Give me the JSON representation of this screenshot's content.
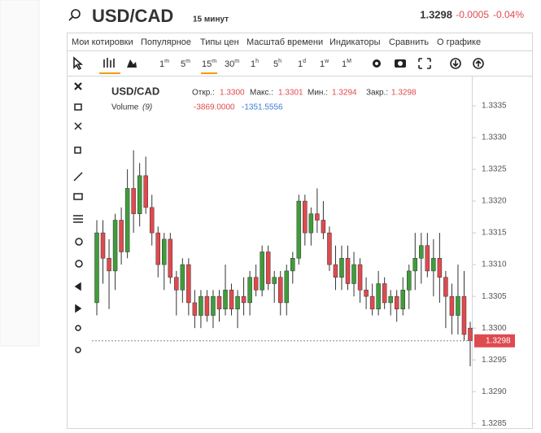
{
  "header": {
    "symbol": "USD/CAD",
    "interval": "15 минут",
    "price": "1.3298",
    "change": "-0.0005",
    "change_pct": "-0.04%"
  },
  "menu": [
    "Мои котировки",
    "Популярное",
    "Типы цен",
    "Масштаб времени",
    "Индикаторы",
    "Сравнить",
    "О графике"
  ],
  "timeframes": [
    {
      "num": "1",
      "unit": "m"
    },
    {
      "num": "5",
      "unit": "m"
    },
    {
      "num": "15",
      "unit": "m"
    },
    {
      "num": "30",
      "unit": "m"
    },
    {
      "num": "1",
      "unit": "h"
    },
    {
      "num": "5",
      "unit": "h"
    },
    {
      "num": "1",
      "unit": "d"
    },
    {
      "num": "1",
      "unit": "w"
    },
    {
      "num": "1",
      "unit": "M"
    }
  ],
  "legend": {
    "symbol": "USD/CAD",
    "open_label": "Откр.:",
    "open": "1.3300",
    "high_label": "Макс.:",
    "high": "1.3301",
    "low_label": "Мин.:",
    "low": "1.3294",
    "close_label": "Закр.:",
    "close": "1.3298",
    "volume_label": "Volume",
    "volume_period": "(9)",
    "volume_value1": "-3869.0000",
    "volume_value2": "-1351.5556"
  },
  "chart_data": {
    "type": "candlestick",
    "up_color": "#3f9d3a",
    "down_color": "#df4a4f",
    "series": [
      {
        "name": "USD/CAD",
        "open": [
          1.3304,
          1.3315,
          1.3311,
          1.3309,
          1.3317,
          1.3312,
          1.3322,
          1.3318,
          1.3324,
          1.3319,
          1.3315,
          1.331,
          1.3314,
          1.3308,
          1.3306,
          1.331,
          1.3304,
          1.3302,
          1.3305,
          1.3302,
          1.3305,
          1.3303,
          1.3306,
          1.3303,
          1.3305,
          1.3304,
          1.3308,
          1.3306,
          1.3312,
          1.3307,
          1.3308,
          1.3304,
          1.3309,
          1.3311,
          1.332,
          1.3315,
          1.3318,
          1.3317,
          1.3315,
          1.331,
          1.3308,
          1.3311,
          1.3307,
          1.331,
          1.3306,
          1.3305,
          1.3303,
          1.3307,
          1.3304,
          1.3305,
          1.3303,
          1.3306,
          1.3309,
          1.3311,
          1.3313,
          1.3309,
          1.3311,
          1.3308,
          1.3305,
          1.3302,
          1.3305,
          1.33
        ],
        "high": [
          1.3317,
          1.3317,
          1.3314,
          1.3318,
          1.3319,
          1.3325,
          1.3328,
          1.3326,
          1.3327,
          1.3321,
          1.3316,
          1.3315,
          1.3315,
          1.3309,
          1.3311,
          1.3311,
          1.3306,
          1.3306,
          1.3306,
          1.3306,
          1.3306,
          1.331,
          1.3307,
          1.3306,
          1.3308,
          1.3309,
          1.331,
          1.3313,
          1.3313,
          1.3309,
          1.3309,
          1.331,
          1.3312,
          1.3321,
          1.3321,
          1.3319,
          1.3322,
          1.332,
          1.3316,
          1.3313,
          1.3313,
          1.3313,
          1.3312,
          1.3311,
          1.3308,
          1.3307,
          1.3309,
          1.3308,
          1.3306,
          1.3306,
          1.3308,
          1.331,
          1.3315,
          1.3315,
          1.3315,
          1.3314,
          1.3315,
          1.3309,
          1.3307,
          1.331,
          1.3309,
          1.3301
        ],
        "low": [
          1.3302,
          1.3307,
          1.3303,
          1.3306,
          1.331,
          1.3311,
          1.3315,
          1.3316,
          1.3318,
          1.3313,
          1.3308,
          1.3306,
          1.3307,
          1.3302,
          1.3304,
          1.3302,
          1.33,
          1.33,
          1.3301,
          1.33,
          1.3301,
          1.3302,
          1.3302,
          1.33,
          1.3302,
          1.3302,
          1.3305,
          1.3305,
          1.3306,
          1.3304,
          1.3302,
          1.3302,
          1.3307,
          1.331,
          1.3313,
          1.3313,
          1.3315,
          1.3314,
          1.3309,
          1.3306,
          1.3306,
          1.3306,
          1.3305,
          1.3304,
          1.3303,
          1.3302,
          1.3302,
          1.3303,
          1.3302,
          1.3301,
          1.3302,
          1.3303,
          1.3306,
          1.3307,
          1.3308,
          1.3305,
          1.3304,
          1.33,
          1.3299,
          1.3299,
          1.3298,
          1.3294
        ],
        "close": [
          1.3315,
          1.3311,
          1.3309,
          1.3317,
          1.3312,
          1.3322,
          1.3318,
          1.3324,
          1.3319,
          1.3315,
          1.331,
          1.3314,
          1.3308,
          1.3306,
          1.331,
          1.3304,
          1.3302,
          1.3305,
          1.3302,
          1.3305,
          1.3303,
          1.3306,
          1.3303,
          1.3305,
          1.3304,
          1.3308,
          1.3306,
          1.3312,
          1.3307,
          1.3308,
          1.3304,
          1.3309,
          1.3311,
          1.332,
          1.3315,
          1.3318,
          1.3317,
          1.3315,
          1.331,
          1.3308,
          1.3311,
          1.3307,
          1.331,
          1.3306,
          1.3305,
          1.3303,
          1.3307,
          1.3304,
          1.3305,
          1.3303,
          1.3306,
          1.3309,
          1.3311,
          1.3313,
          1.3309,
          1.3311,
          1.3308,
          1.3305,
          1.3302,
          1.3305,
          1.3299,
          1.3298
        ]
      }
    ],
    "ylim": [
      1.3284,
      1.334
    ],
    "yticks": [
      {
        "value": 1.3285,
        "label": "1.3285"
      },
      {
        "value": 1.329,
        "label": "1.3290"
      },
      {
        "value": 1.3295,
        "label": "1.3295"
      },
      {
        "value": 1.33,
        "label": "1.3300"
      },
      {
        "value": 1.3305,
        "label": "1.3305"
      },
      {
        "value": 1.331,
        "label": "1.3310"
      },
      {
        "value": 1.3315,
        "label": "1.3315"
      },
      {
        "value": 1.332,
        "label": "1.3320"
      },
      {
        "value": 1.3325,
        "label": "1.3325"
      },
      {
        "value": 1.333,
        "label": "1.3330"
      },
      {
        "value": 1.3335,
        "label": "1.3335"
      }
    ],
    "last_price": {
      "value": 1.3298,
      "label": "1.3298"
    }
  }
}
